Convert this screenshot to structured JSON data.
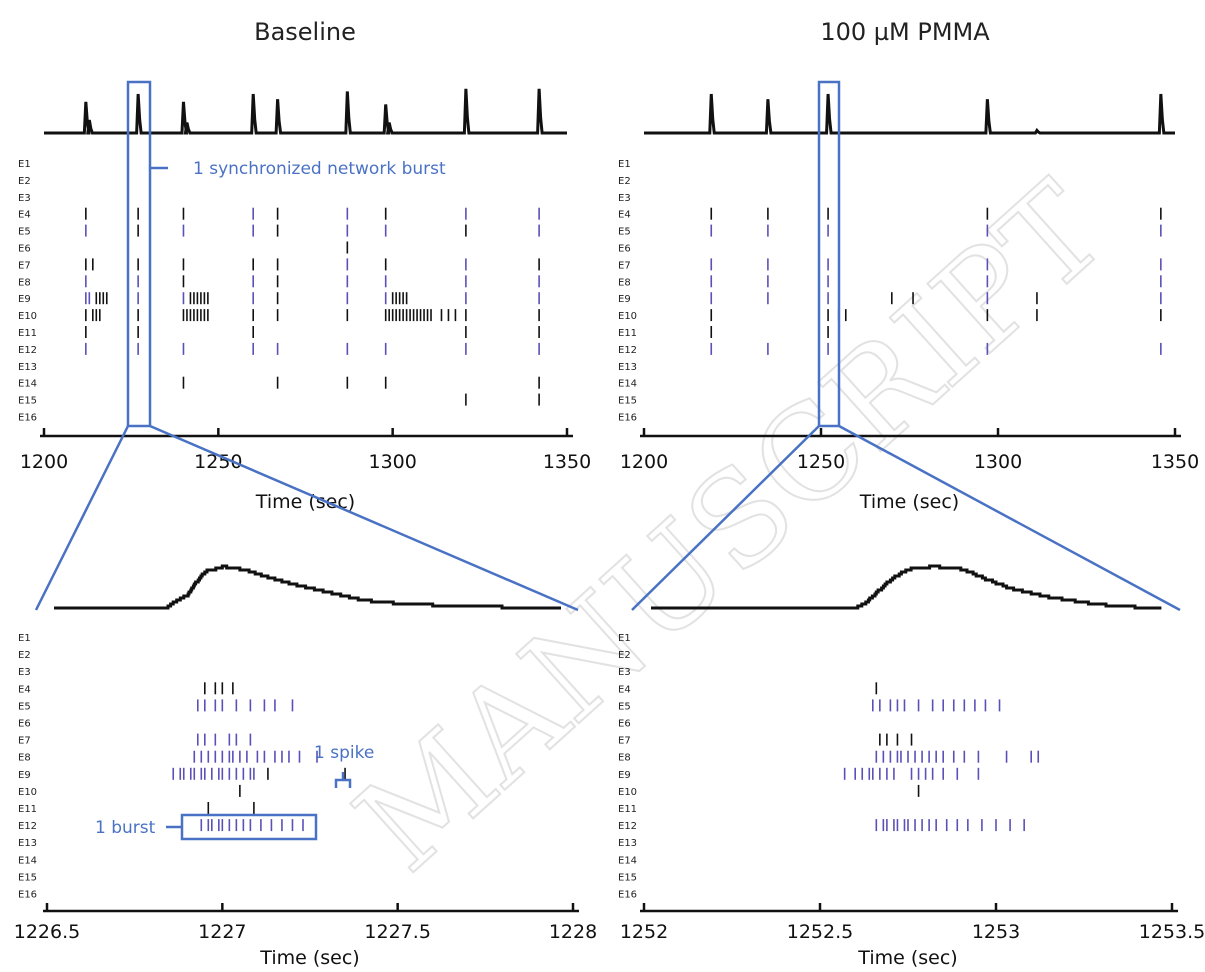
{
  "watermark": "MANUSCRIPT",
  "colors": {
    "black": "#111111",
    "blue": "#5a50b8",
    "frame": "#4a72c4"
  },
  "annotations": {
    "network_burst": "1 synchronized network burst",
    "spike": "1 spike",
    "burst": "1 burst"
  },
  "chart_data": [
    {
      "type": "raster",
      "title": "Baseline",
      "xlabel": "Time (sec)",
      "xlim": [
        1200,
        1350
      ],
      "ticks": [
        1200,
        1250,
        1300,
        1350
      ],
      "tick_labels": [
        "1200",
        "1250",
        "1300",
        "1350"
      ],
      "channels": [
        "E1",
        "E2",
        "E3",
        "E4",
        "E5",
        "E6",
        "E7",
        "E8",
        "E9",
        "E10",
        "E11",
        "E12",
        "E13",
        "E14",
        "E15",
        "E16"
      ],
      "trace": {
        "baseline": 0,
        "peaks": [
          [
            1212,
            0.6
          ],
          [
            1213,
            0.25
          ],
          [
            1227,
            0.75
          ],
          [
            1240,
            0.6
          ],
          [
            1241,
            0.2
          ],
          [
            1260,
            0.75
          ],
          [
            1267,
            0.65
          ],
          [
            1287,
            0.8
          ],
          [
            1298,
            0.55
          ],
          [
            1299,
            0.2
          ],
          [
            1321,
            0.85
          ],
          [
            1342,
            0.85
          ]
        ]
      },
      "spikes": [
        {
          "ch": "E4",
          "color": "black",
          "t": [
            1212,
            1227,
            1240,
            1267,
            1298
          ]
        },
        {
          "ch": "E4",
          "color": "blue",
          "t": [
            1260,
            1287,
            1321,
            1342
          ]
        },
        {
          "ch": "E5",
          "color": "blue",
          "t": [
            1212,
            1240,
            1260,
            1287,
            1298,
            1342
          ]
        },
        {
          "ch": "E5",
          "color": "black",
          "t": [
            1227,
            1267,
            1321
          ]
        },
        {
          "ch": "E6",
          "color": "black",
          "t": [
            1287
          ]
        },
        {
          "ch": "E7",
          "color": "black",
          "t": [
            1212,
            1214,
            1227,
            1240,
            1260,
            1267,
            1298,
            1342
          ]
        },
        {
          "ch": "E7",
          "color": "blue",
          "t": [
            1287,
            1321
          ]
        },
        {
          "ch": "E8",
          "color": "blue",
          "t": [
            1212,
            1227,
            1260,
            1287,
            1298,
            1321,
            1342
          ]
        },
        {
          "ch": "E8",
          "color": "black",
          "t": [
            1240,
            1267
          ]
        },
        {
          "ch": "E9",
          "color": "blue",
          "t": [
            1212,
            1213,
            1227,
            1240,
            1260,
            1287,
            1298,
            1321,
            1342
          ]
        },
        {
          "ch": "E9",
          "color": "black",
          "t": [
            1215,
            1216,
            1217,
            1218,
            1242,
            1243,
            1244,
            1245,
            1246,
            1247,
            1267,
            1300,
            1301,
            1302,
            1303,
            1304
          ]
        },
        {
          "ch": "E10",
          "color": "black",
          "t": [
            1212,
            1214,
            1215,
            1216,
            1227,
            1240,
            1241,
            1242,
            1243,
            1244,
            1245,
            1246,
            1247,
            1260,
            1267,
            1287,
            1298,
            1299,
            1300,
            1301,
            1302,
            1303,
            1304,
            1305,
            1306,
            1307,
            1308,
            1309,
            1310,
            1311,
            1314,
            1316,
            1318,
            1321,
            1342
          ]
        },
        {
          "ch": "E11",
          "color": "black",
          "t": [
            1212,
            1227,
            1260,
            1321,
            1342
          ]
        },
        {
          "ch": "E12",
          "color": "blue",
          "t": [
            1212,
            1227,
            1240,
            1260,
            1267,
            1287,
            1298,
            1321,
            1342
          ]
        },
        {
          "ch": "E14",
          "color": "black",
          "t": [
            1240,
            1267,
            1287,
            1298,
            1342
          ]
        },
        {
          "ch": "E15",
          "color": "black",
          "t": [
            1321,
            1342
          ]
        }
      ]
    },
    {
      "type": "raster",
      "title": "100 µM PMMA",
      "xlabel": "Time (sec)",
      "xlim": [
        1200,
        1350
      ],
      "ticks": [
        1200,
        1250,
        1300,
        1350
      ],
      "tick_labels": [
        "1200",
        "1250",
        "1300",
        "1350"
      ],
      "channels": [
        "E1",
        "E2",
        "E3",
        "E4",
        "E5",
        "E6",
        "E7",
        "E8",
        "E9",
        "E10",
        "E11",
        "E12",
        "E13",
        "E14",
        "E15",
        "E16"
      ],
      "trace": {
        "baseline": 0,
        "peaks": [
          [
            1219,
            0.75
          ],
          [
            1235,
            0.65
          ],
          [
            1252,
            0.75
          ],
          [
            1297,
            0.65
          ],
          [
            1311,
            0.05
          ],
          [
            1346,
            0.75
          ]
        ]
      },
      "spikes": [
        {
          "ch": "E4",
          "color": "black",
          "t": [
            1219,
            1235,
            1252,
            1297,
            1346
          ]
        },
        {
          "ch": "E5",
          "color": "blue",
          "t": [
            1219,
            1235,
            1252,
            1297,
            1346
          ]
        },
        {
          "ch": "E7",
          "color": "blue",
          "t": [
            1219,
            1235,
            1252,
            1297,
            1346
          ]
        },
        {
          "ch": "E8",
          "color": "blue",
          "t": [
            1219,
            1235,
            1252,
            1297,
            1346
          ]
        },
        {
          "ch": "E9",
          "color": "blue",
          "t": [
            1219,
            1235,
            1252,
            1297,
            1346
          ]
        },
        {
          "ch": "E9",
          "color": "black",
          "t": [
            1270,
            1276,
            1311
          ]
        },
        {
          "ch": "E10",
          "color": "black",
          "t": [
            1219,
            1252,
            1255,
            1257,
            1297,
            1311,
            1346
          ]
        },
        {
          "ch": "E11",
          "color": "black",
          "t": [
            1219,
            1252
          ]
        },
        {
          "ch": "E12",
          "color": "blue",
          "t": [
            1219,
            1235,
            1252,
            1297,
            1346
          ]
        }
      ]
    },
    {
      "type": "raster",
      "title": "",
      "xlabel": "Time (sec)",
      "xlim": [
        1226.5,
        1228
      ],
      "ticks": [
        1226.5,
        1227,
        1227.5,
        1228
      ],
      "tick_labels": [
        "1226.5",
        "1227",
        "1227.5",
        "1228"
      ],
      "channels": [
        "E1",
        "E2",
        "E3",
        "E4",
        "E5",
        "E6",
        "E7",
        "E8",
        "E9",
        "E10",
        "E11",
        "E12",
        "E13",
        "E14",
        "E15",
        "E16"
      ],
      "trace": {
        "baseline": 0,
        "profile": [
          [
            1226.52,
            0
          ],
          [
            1226.84,
            0
          ],
          [
            1226.86,
            0.1
          ],
          [
            1226.9,
            0.25
          ],
          [
            1226.92,
            0.45
          ],
          [
            1226.95,
            0.7
          ],
          [
            1227.0,
            0.8
          ],
          [
            1227.05,
            0.75
          ],
          [
            1227.12,
            0.6
          ],
          [
            1227.2,
            0.45
          ],
          [
            1227.3,
            0.3
          ],
          [
            1227.4,
            0.15
          ],
          [
            1227.5,
            0.08
          ],
          [
            1227.7,
            0.03
          ],
          [
            1227.96,
            0
          ]
        ]
      },
      "spikes": [
        {
          "ch": "E4",
          "color": "black",
          "t": [
            1226.95,
            1226.98,
            1227.0,
            1227.03
          ]
        },
        {
          "ch": "E5",
          "color": "blue",
          "t": [
            1226.93,
            1226.95,
            1226.98,
            1227.0,
            1227.04,
            1227.08,
            1227.12,
            1227.15,
            1227.2
          ]
        },
        {
          "ch": "E7",
          "color": "blue",
          "t": [
            1226.93,
            1226.95,
            1226.98,
            1227.02,
            1227.04,
            1227.08
          ]
        },
        {
          "ch": "E8",
          "color": "blue",
          "t": [
            1226.92,
            1226.94,
            1226.96,
            1226.98,
            1227.0,
            1227.02,
            1227.03,
            1227.05,
            1227.07,
            1227.1,
            1227.12,
            1227.15,
            1227.17,
            1227.19,
            1227.22,
            1227.27
          ]
        },
        {
          "ch": "E9",
          "color": "blue",
          "t": [
            1226.86,
            1226.88,
            1226.89,
            1226.91,
            1226.92,
            1226.94,
            1226.95,
            1226.97,
            1226.99,
            1227.0,
            1227.02,
            1227.04,
            1227.06,
            1227.08,
            1227.09
          ]
        },
        {
          "ch": "E9",
          "color": "black",
          "t": [
            1227.13
          ]
        },
        {
          "ch": "E10",
          "color": "black",
          "t": [
            1227.05
          ]
        },
        {
          "ch": "E11",
          "color": "black",
          "t": [
            1226.96,
            1227.09
          ]
        },
        {
          "ch": "E12",
          "color": "blue",
          "t": [
            1226.94,
            1226.96,
            1226.97,
            1226.99,
            1227.0,
            1227.02,
            1227.04,
            1227.06,
            1227.08,
            1227.11,
            1227.14,
            1227.17,
            1227.2,
            1227.23
          ]
        },
        {
          "ch": "E9",
          "color": "black",
          "t": [
            1227.35
          ]
        }
      ]
    },
    {
      "type": "raster",
      "title": "",
      "xlabel": "Time (sec)",
      "xlim": [
        1252,
        1253.5
      ],
      "ticks": [
        1252,
        1252.5,
        1253,
        1253.5
      ],
      "tick_labels": [
        "1252",
        "1252.5",
        "1253",
        "1253.5"
      ],
      "channels": [
        "E1",
        "E2",
        "E3",
        "E4",
        "E5",
        "E6",
        "E7",
        "E8",
        "E9",
        "E10",
        "E11",
        "E12",
        "E13",
        "E14",
        "E15",
        "E16"
      ],
      "trace": {
        "baseline": 0,
        "profile": [
          [
            1252.02,
            0
          ],
          [
            1252.6,
            0
          ],
          [
            1252.63,
            0.1
          ],
          [
            1252.66,
            0.3
          ],
          [
            1252.7,
            0.55
          ],
          [
            1252.75,
            0.75
          ],
          [
            1252.82,
            0.8
          ],
          [
            1252.9,
            0.75
          ],
          [
            1252.97,
            0.55
          ],
          [
            1253.05,
            0.35
          ],
          [
            1253.15,
            0.2
          ],
          [
            1253.25,
            0.1
          ],
          [
            1253.35,
            0.03
          ],
          [
            1253.47,
            0
          ]
        ]
      },
      "spikes": [
        {
          "ch": "E4",
          "color": "black",
          "t": [
            1252.66
          ]
        },
        {
          "ch": "E5",
          "color": "blue",
          "t": [
            1252.65,
            1252.67,
            1252.7,
            1252.72,
            1252.74,
            1252.78,
            1252.82,
            1252.85,
            1252.88,
            1252.91,
            1252.94,
            1252.97,
            1253.01
          ]
        },
        {
          "ch": "E7",
          "color": "black",
          "t": [
            1252.67,
            1252.69,
            1252.72,
            1252.76
          ]
        },
        {
          "ch": "E8",
          "color": "blue",
          "t": [
            1252.66,
            1252.68,
            1252.7,
            1252.72,
            1252.73,
            1252.75,
            1252.77,
            1252.79,
            1252.81,
            1252.83,
            1252.85,
            1252.88,
            1252.91,
            1252.95,
            1253.03,
            1253.1,
            1253.12
          ]
        },
        {
          "ch": "E9",
          "color": "blue",
          "t": [
            1252.57,
            1252.6,
            1252.62,
            1252.64,
            1252.65,
            1252.67,
            1252.69,
            1252.71,
            1252.76,
            1252.78,
            1252.8,
            1252.82,
            1252.85,
            1252.89,
            1252.95
          ]
        },
        {
          "ch": "E10",
          "color": "black",
          "t": [
            1252.78
          ]
        },
        {
          "ch": "E12",
          "color": "blue",
          "t": [
            1252.66,
            1252.68,
            1252.69,
            1252.71,
            1252.72,
            1252.74,
            1252.75,
            1252.77,
            1252.79,
            1252.81,
            1252.83,
            1252.86,
            1252.89,
            1252.92,
            1252.96,
            1253.0,
            1253.04,
            1253.08
          ]
        }
      ]
    }
  ]
}
